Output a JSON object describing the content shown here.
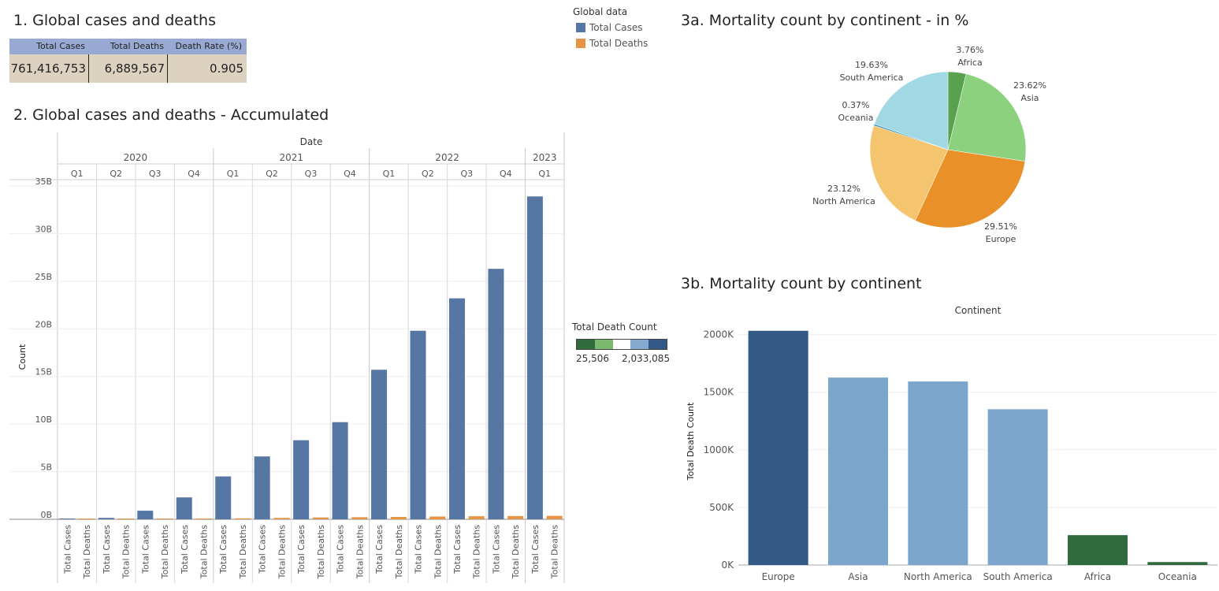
{
  "titles": {
    "s1": "1. Global cases and deaths",
    "s2": "2. Global cases and deaths - Accumulated",
    "s3a": "3a. Mortality count by continent - in %",
    "s3b": "3b. Mortality count by continent"
  },
  "kpi": {
    "headers": [
      "Total Cases",
      "Total Deaths",
      "Death Rate (%)"
    ],
    "values": [
      "761,416,753",
      "6,889,567",
      "0.905"
    ]
  },
  "legend_global": {
    "title": "Global data",
    "items": [
      {
        "label": "Total Cases",
        "color": "#5677A4"
      },
      {
        "label": "Total Deaths",
        "color": "#E49444"
      }
    ]
  },
  "legend_death": {
    "title": "Total Death Count",
    "min": "25,506",
    "max": "2,033,085",
    "colors": [
      "#2F6B3D",
      "#7BB86F",
      "#FFFFFF",
      "#86A9CF",
      "#335987"
    ]
  },
  "chart_data": [
    {
      "type": "bar",
      "title": "2. Global cases and deaths - Accumulated",
      "column_header": "Date",
      "years": [
        {
          "year": "2020",
          "quarters": [
            "Q1",
            "Q2",
            "Q3",
            "Q4"
          ]
        },
        {
          "year": "2021",
          "quarters": [
            "Q1",
            "Q2",
            "Q3",
            "Q4"
          ]
        },
        {
          "year": "2022",
          "quarters": [
            "Q1",
            "Q2",
            "Q3",
            "Q4"
          ]
        },
        {
          "year": "2023",
          "quarters": [
            "Q1"
          ]
        }
      ],
      "categories": [
        "2020 Q1",
        "2020 Q2",
        "2020 Q3",
        "2020 Q4",
        "2021 Q1",
        "2021 Q2",
        "2021 Q3",
        "2021 Q4",
        "2022 Q1",
        "2022 Q2",
        "2022 Q3",
        "2022 Q4",
        "2023 Q1"
      ],
      "series": [
        {
          "name": "Total Cases",
          "color": "#5677A4",
          "values": [
            0.02,
            0.15,
            0.9,
            2.3,
            4.5,
            6.6,
            8.3,
            10.2,
            15.7,
            19.8,
            23.2,
            26.3,
            33.9
          ]
        },
        {
          "name": "Total Deaths",
          "color": "#E49444",
          "values": [
            0.001,
            0.01,
            0.03,
            0.06,
            0.1,
            0.15,
            0.19,
            0.22,
            0.25,
            0.29,
            0.32,
            0.34,
            0.36
          ]
        }
      ],
      "ylabel": "Count",
      "ylim": [
        0,
        35
      ],
      "yticks": [
        0,
        5,
        10,
        15,
        20,
        25,
        30,
        35
      ],
      "ytick_labels": [
        "0B",
        "5B",
        "10B",
        "15B",
        "20B",
        "25B",
        "30B",
        "35B"
      ],
      "grid": true
    },
    {
      "type": "pie",
      "title": "3a. Mortality count by continent - in %",
      "slices": [
        {
          "label": "Africa",
          "value": 3.76,
          "pct": "3.76%",
          "color": "#59A14F"
        },
        {
          "label": "Asia",
          "value": 23.62,
          "pct": "23.62%",
          "color": "#8CD17D"
        },
        {
          "label": "Europe",
          "value": 29.51,
          "pct": "29.51%",
          "color": "#E99128"
        },
        {
          "label": "North America",
          "value": 23.12,
          "pct": "23.12%",
          "color": "#F5C46F"
        },
        {
          "label": "Oceania",
          "value": 0.37,
          "pct": "0.37%",
          "color": "#4E9ABB"
        },
        {
          "label": "South America",
          "value": 19.63,
          "pct": "19.63%",
          "color": "#A0D9E4"
        }
      ]
    },
    {
      "type": "bar",
      "title": "3b. Mortality count by continent",
      "column_header": "Continent",
      "categories": [
        "Europe",
        "Asia",
        "North America",
        "South America",
        "Africa",
        "Oceania"
      ],
      "values": [
        2033085,
        1627000,
        1593000,
        1352000,
        259000,
        25506
      ],
      "colors": [
        "#335987",
        "#7CA5CB",
        "#7CA5CB",
        "#7CA5CB",
        "#2F6B3D",
        "#2F6B3D"
      ],
      "ylabel": "Total Death Count",
      "ylim": [
        0,
        2100000
      ],
      "yticks": [
        0,
        500000,
        1000000,
        1500000,
        2000000
      ],
      "ytick_labels": [
        "0K",
        "500K",
        "1000K",
        "1500K",
        "2000K"
      ],
      "grid": true
    }
  ]
}
